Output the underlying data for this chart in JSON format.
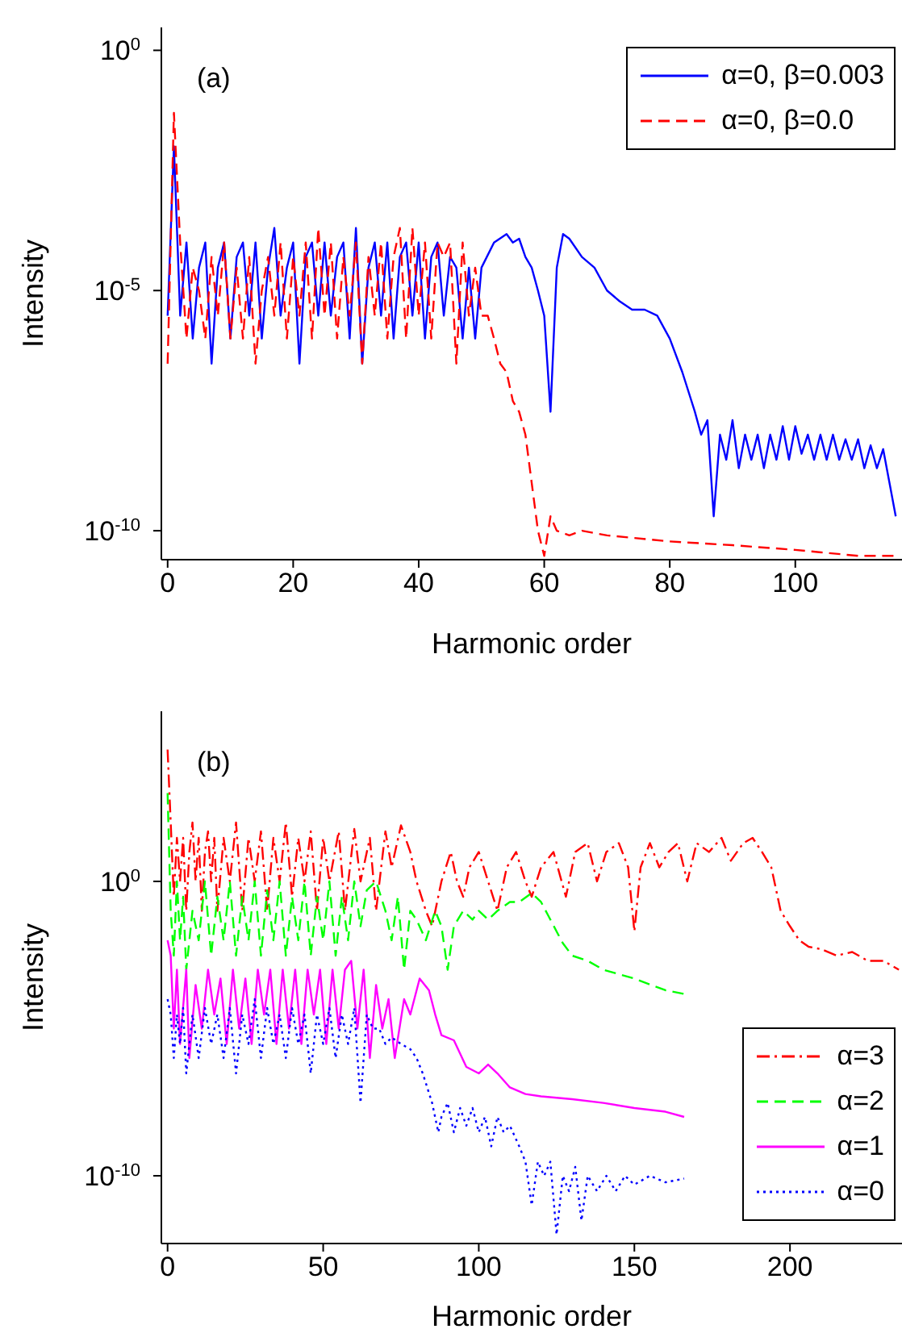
{
  "chart_data": [
    {
      "type": "line",
      "xlabel": "Harmonic order",
      "ylabel": "Intensity",
      "annotations": [
        "(a)"
      ],
      "log": "y",
      "legend": "top right",
      "marker": "none",
      "xlim": [
        -1,
        117
      ],
      "xticks": [
        0,
        20,
        40,
        60,
        80,
        100
      ],
      "ylim": [
        2.5e-11,
        3
      ],
      "yticks": [
        {
          "value": 1,
          "label": "10$^{0}$"
        },
        {
          "value": 1e-05,
          "label": "10$^{-5}$"
        },
        {
          "value": 1e-10,
          "label": "10$^{-10}$"
        }
      ],
      "series": [
        {
          "name": "α=0, β=0.003",
          "color": "#0000ff",
          "line_style": "solid",
          "x": [
            0,
            1,
            2,
            3,
            4,
            5,
            6,
            7,
            8,
            9,
            10,
            11,
            12,
            13,
            14,
            15,
            16,
            17,
            18,
            19,
            20,
            21,
            22,
            23,
            24,
            25,
            26,
            27,
            28,
            29,
            30,
            31,
            32,
            33,
            34,
            35,
            36,
            37,
            38,
            39,
            40,
            41,
            42,
            43,
            44,
            45,
            46,
            47,
            48,
            49,
            50,
            52,
            54,
            55,
            56,
            57,
            58,
            59,
            60,
            61,
            62,
            63,
            64,
            66,
            68,
            70,
            72,
            74,
            76,
            78,
            80,
            82,
            84,
            85,
            86,
            87,
            88,
            89,
            90,
            91,
            92,
            93,
            94,
            95,
            96,
            97,
            98,
            99,
            100,
            101,
            102,
            103,
            104,
            105,
            106,
            107,
            108,
            109,
            110,
            111,
            112,
            113,
            114,
            115,
            116
          ],
          "values": [
            3e-06,
            0.01,
            3e-06,
            0.0001,
            1e-06,
            3e-05,
            0.0001,
            3e-07,
            3e-05,
            0.0001,
            1e-06,
            5e-05,
            0.0001,
            3e-06,
            0.0001,
            1e-06,
            3e-05,
            0.0002,
            3e-06,
            3e-05,
            0.0001,
            3e-07,
            5e-05,
            0.0001,
            3e-06,
            0.0001,
            3e-06,
            5e-05,
            0.0001,
            1e-06,
            0.0002,
            3e-07,
            3e-05,
            0.0001,
            3e-06,
            0.0001,
            1e-06,
            5e-05,
            0.0001,
            3e-06,
            0.0001,
            1e-06,
            5e-05,
            0.0001,
            3e-06,
            5e-05,
            3e-05,
            1e-06,
            3e-05,
            1e-06,
            3e-05,
            0.0001,
            0.00015,
            0.0001,
            0.00012,
            5e-05,
            3e-05,
            1e-05,
            3e-06,
            3e-08,
            3e-05,
            0.00015,
            0.00012,
            5e-05,
            3e-05,
            1e-05,
            6e-06,
            4e-06,
            4e-06,
            3e-06,
            1e-06,
            2e-07,
            3e-08,
            1e-08,
            2e-08,
            2e-10,
            1e-08,
            3e-09,
            2e-08,
            2e-09,
            1e-08,
            3e-09,
            1e-08,
            2e-09,
            1e-08,
            3e-09,
            1.5e-08,
            3e-09,
            1.5e-08,
            4e-09,
            1e-08,
            3e-09,
            1e-08,
            3e-09,
            1e-08,
            3e-09,
            8e-09,
            3e-09,
            8e-09,
            2e-09,
            6e-09,
            2e-09,
            5e-09,
            1e-09,
            2e-10
          ]
        },
        {
          "name": "α=0, β=0.0",
          "color": "#ff0000",
          "line_style": "dashed",
          "x": [
            0,
            1,
            2,
            3,
            4,
            5,
            6,
            7,
            8,
            9,
            10,
            11,
            12,
            13,
            14,
            15,
            16,
            17,
            18,
            19,
            20,
            21,
            22,
            23,
            24,
            25,
            26,
            27,
            28,
            29,
            30,
            31,
            32,
            33,
            34,
            35,
            36,
            37,
            38,
            39,
            40,
            41,
            42,
            43,
            44,
            45,
            46,
            47,
            48,
            49,
            50,
            51,
            52,
            53,
            54,
            55,
            56,
            57,
            58,
            59,
            60,
            61,
            62,
            64,
            66,
            70,
            80,
            90,
            100,
            110,
            116
          ],
          "values": [
            3e-07,
            0.05,
            0.0001,
            1e-06,
            3e-05,
            1e-05,
            1e-06,
            5e-05,
            3e-06,
            0.0001,
            1e-06,
            3e-05,
            1e-06,
            5e-05,
            3e-07,
            1e-05,
            5e-05,
            3e-06,
            0.0001,
            1e-06,
            5e-05,
            3e-06,
            0.0001,
            1e-06,
            0.0002,
            3e-06,
            0.0001,
            1e-06,
            5e-05,
            3e-06,
            0.0001,
            3e-07,
            5e-05,
            3e-06,
            0.0001,
            1e-06,
            5e-05,
            0.0002,
            1e-06,
            0.0002,
            3e-06,
            0.0001,
            1e-06,
            0.0001,
            5e-05,
            0.0001,
            3e-07,
            0.0001,
            3e-06,
            3e-05,
            3e-06,
            3e-06,
            1e-06,
            3e-07,
            2e-07,
            5e-08,
            3e-08,
            1e-08,
            1e-09,
            1e-10,
            3e-11,
            2e-10,
            1e-10,
            8e-11,
            1e-10,
            8e-11,
            6e-11,
            5e-11,
            4e-11,
            3e-11,
            3e-11
          ]
        }
      ]
    },
    {
      "type": "line",
      "xlabel": "Harmonic order",
      "ylabel": "Intensity",
      "annotations": [
        "(b)"
      ],
      "log": "y",
      "legend": "bottom right",
      "marker": "none",
      "xlim": [
        -2,
        236
      ],
      "xticks": [
        0,
        50,
        100,
        150,
        200
      ],
      "ylim": [
        5e-13,
        600000.0
      ],
      "yticks": [
        {
          "value": 1,
          "label": "10$^{0}$"
        },
        {
          "value": 1e-10,
          "label": "10$^{-10}$"
        }
      ],
      "series": [
        {
          "name": "α=3",
          "color": "#ff0000",
          "line_style": "dashdot",
          "x": [
            0,
            1,
            2,
            3,
            4,
            5,
            6,
            7,
            8,
            9,
            10,
            11,
            12,
            13,
            14,
            15,
            16,
            18,
            20,
            22,
            24,
            26,
            28,
            30,
            32,
            34,
            36,
            38,
            40,
            42,
            44,
            46,
            48,
            50,
            52,
            55,
            57,
            60,
            62,
            65,
            67,
            70,
            72,
            75,
            78,
            80,
            83,
            85,
            88,
            91,
            93,
            95,
            97,
            100,
            103,
            106,
            109,
            112,
            115,
            117,
            120,
            124,
            128,
            131,
            135,
            138,
            141,
            145,
            148,
            150,
            152,
            155,
            158,
            161,
            164,
            167,
            170,
            174,
            178,
            181,
            185,
            188,
            191,
            194,
            197,
            200,
            203,
            206,
            210,
            215,
            220,
            225,
            230,
            235
          ],
          "values": [
            30000.0,
            100,
            0.3,
            30,
            1,
            30,
            0.1,
            10,
            100,
            1,
            30,
            0.1,
            10,
            50,
            1,
            30,
            0.1,
            30,
            1,
            100,
            0.1,
            30,
            1,
            50,
            0.1,
            30,
            1,
            100,
            0.3,
            30,
            1,
            50,
            0.1,
            30,
            1,
            50,
            0.1,
            60,
            1,
            30,
            0.1,
            50,
            3,
            80,
            10,
            1,
            0.1,
            0.03,
            1,
            10,
            1,
            0.3,
            3,
            10,
            1,
            0.1,
            3,
            10,
            1,
            0.3,
            3,
            10,
            0.3,
            10,
            20,
            1,
            10,
            20,
            3,
            0.02,
            3,
            20,
            3,
            10,
            20,
            1,
            20,
            10,
            30,
            5,
            20,
            30,
            10,
            3,
            0.1,
            0.03,
            0.01,
            0.006,
            0.005,
            0.003,
            0.004,
            0.002,
            0.002,
            0.001
          ]
        },
        {
          "name": "α=2",
          "color": "#00ff00",
          "line_style": "dashed",
          "x": [
            0,
            1,
            2,
            3,
            4,
            5,
            6,
            8,
            10,
            12,
            14,
            16,
            18,
            20,
            22,
            24,
            26,
            28,
            30,
            32,
            34,
            36,
            38,
            40,
            42,
            44,
            46,
            48,
            50,
            52,
            54,
            56,
            58,
            60,
            62,
            64,
            67,
            70,
            72,
            74,
            76,
            78,
            80,
            83,
            86,
            88,
            90,
            92,
            95,
            98,
            100,
            103,
            106,
            110,
            113,
            117,
            120,
            122,
            125,
            127,
            130,
            135,
            140,
            150,
            160,
            166
          ],
          "values": [
            1000,
            0.1,
            0.003,
            1,
            0.01,
            0.3,
            0.001,
            0.1,
            0.01,
            1,
            0.003,
            0.3,
            0.01,
            1,
            0.003,
            0.3,
            0.01,
            1,
            0.003,
            0.5,
            0.01,
            1,
            0.003,
            0.3,
            0.01,
            1,
            0.003,
            0.3,
            0.01,
            1,
            0.003,
            0.3,
            0.01,
            1,
            0.03,
            0.5,
            1,
            0.1,
            0.01,
            0.3,
            0.001,
            0.1,
            0.05,
            0.01,
            0.1,
            0.03,
            0.001,
            0.03,
            0.1,
            0.05,
            0.1,
            0.05,
            0.1,
            0.2,
            0.2,
            0.4,
            0.2,
            0.08,
            0.02,
            0.008,
            0.003,
            0.002,
            0.001,
            0.0005,
            0.0002,
            0.00015
          ]
        },
        {
          "name": "α=1",
          "color": "#ff00ff",
          "line_style": "solid",
          "x": [
            0,
            1,
            2,
            3,
            4,
            6,
            7,
            9,
            11,
            13,
            15,
            17,
            19,
            21,
            23,
            25,
            27,
            29,
            31,
            33,
            35,
            37,
            39,
            41,
            43,
            45,
            47,
            49,
            51,
            53,
            55,
            57,
            59,
            61,
            63,
            65,
            67,
            69,
            71,
            73,
            76,
            78,
            81,
            84,
            86,
            88,
            92,
            96,
            100,
            103,
            106,
            110,
            115,
            120,
            130,
            140,
            150,
            160,
            166
          ],
          "values": [
            0.01,
            0.003,
            1e-05,
            0.001,
            3e-06,
            0.001,
            1e-06,
            0.0003,
            1e-05,
            0.001,
            3e-05,
            0.0005,
            3e-06,
            0.001,
            1e-05,
            0.0005,
            3e-06,
            0.001,
            3e-05,
            0.001,
            3e-06,
            0.001,
            1e-05,
            0.001,
            3e-06,
            0.001,
            3e-05,
            0.001,
            3e-06,
            0.001,
            1e-05,
            0.001,
            0.002,
            1e-05,
            0.001,
            1e-06,
            0.0003,
            1e-05,
            0.0001,
            1e-06,
            0.0001,
            3e-05,
            0.0005,
            0.0002,
            3e-05,
            6e-06,
            4e-06,
            5e-07,
            3e-07,
            6e-07,
            3e-07,
            1e-07,
            6e-08,
            5e-08,
            4e-08,
            3e-08,
            2e-08,
            1.5e-08,
            1e-08
          ]
        },
        {
          "name": "α=0",
          "color": "#0000ff",
          "line_style": "dotted",
          "x": [
            0,
            1,
            2,
            3,
            4,
            5,
            6,
            8,
            10,
            12,
            14,
            16,
            18,
            20,
            22,
            24,
            26,
            28,
            30,
            32,
            34,
            36,
            38,
            40,
            42,
            44,
            46,
            48,
            50,
            52,
            54,
            56,
            58,
            60,
            62,
            64,
            66,
            68,
            70,
            72,
            75,
            78,
            80,
            82,
            85,
            87,
            88,
            90,
            92,
            94,
            96,
            98,
            100,
            102,
            104,
            106,
            108,
            110,
            113,
            115,
            117,
            119,
            121,
            123,
            125,
            127,
            129,
            131,
            133,
            135,
            138,
            141,
            144,
            147,
            150,
            155,
            160,
            166
          ],
          "values": [
            0.0001,
            3e-05,
            1e-06,
            3e-05,
            3e-06,
            5e-05,
            3e-07,
            3e-05,
            1e-06,
            5e-05,
            3e-06,
            3e-05,
            1e-06,
            5e-05,
            3e-07,
            3e-05,
            3e-06,
            0.0001,
            1e-06,
            5e-05,
            3e-06,
            3e-05,
            1e-06,
            5e-05,
            3e-06,
            3e-05,
            3e-07,
            3e-05,
            3e-06,
            5e-05,
            1e-06,
            3e-05,
            3e-06,
            5e-05,
            3e-08,
            3e-05,
            1e-05,
            1e-05,
            3e-06,
            5e-06,
            3e-06,
            2e-06,
            1e-06,
            3e-07,
            3e-08,
            3e-09,
            1e-08,
            3e-08,
            3e-09,
            2e-08,
            5e-09,
            2e-08,
            3e-09,
            1e-08,
            1e-09,
            1e-08,
            3e-09,
            5e-09,
            1e-09,
            3e-10,
            1e-11,
            3e-10,
            1e-10,
            3e-10,
            1e-12,
            1e-10,
            3e-11,
            2e-10,
            3e-12,
            1e-10,
            3e-11,
            1e-10,
            3e-11,
            1e-10,
            5e-11,
            1e-10,
            6e-11,
            8e-11
          ]
        }
      ]
    }
  ]
}
